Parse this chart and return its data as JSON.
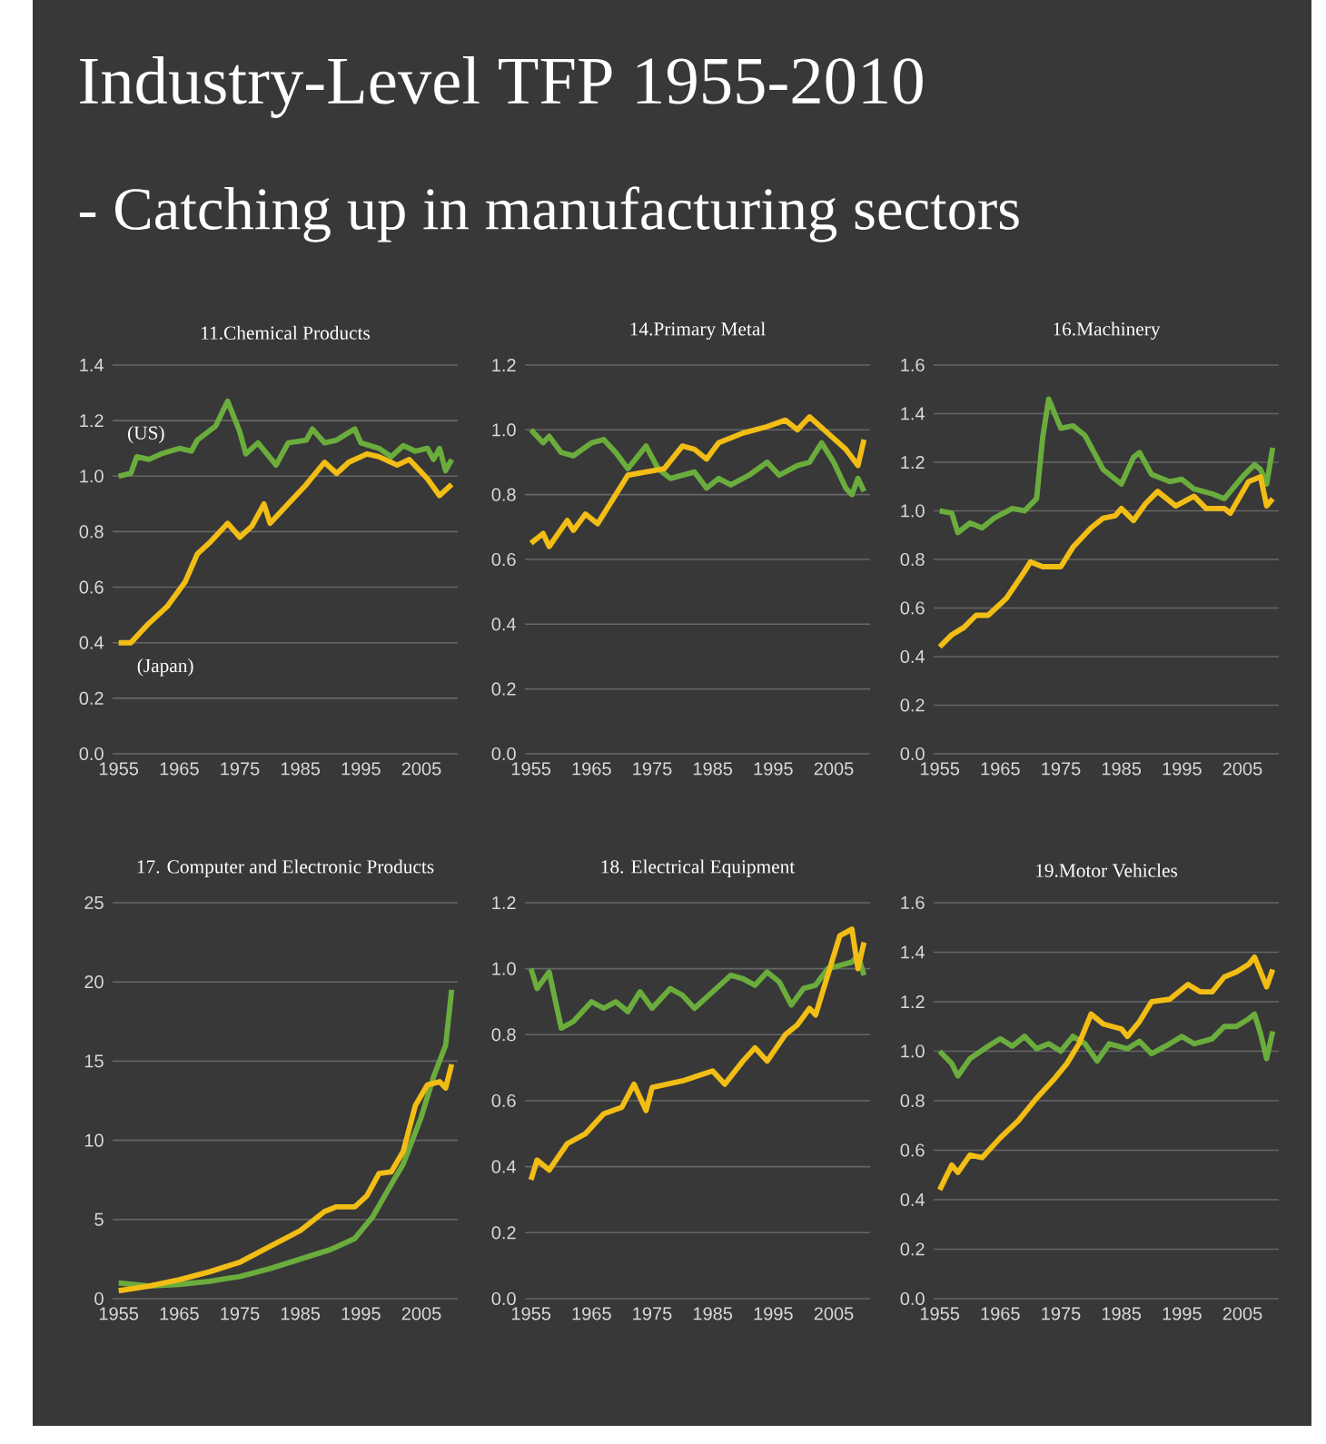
{
  "chart_data": [
    {
      "type": "other",
      "title": "Industry-Level TFP 1955-2010",
      "subtitle": "- Catching up in manufacturing sectors"
    },
    {
      "type": "line",
      "title": "11.Chemical Products",
      "xlim": [
        1954,
        2011
      ],
      "xticks": [
        1955,
        1965,
        1975,
        1985,
        1995,
        2005
      ],
      "ylim": [
        0,
        1.4
      ],
      "yticks": [
        {
          "value": 0,
          "label": "0.0"
        },
        {
          "value": 0.2,
          "label": "0.2"
        },
        {
          "value": 0.4,
          "label": "0.4"
        },
        {
          "value": 0.6,
          "label": "0.6"
        },
        {
          "value": 0.8,
          "label": "0.8"
        },
        {
          "value": 1,
          "label": "1.0"
        },
        {
          "value": 1.2,
          "label": "1.2"
        },
        {
          "value": 1.4,
          "label": "1.4"
        }
      ],
      "grid": "y",
      "series": [
        {
          "name": "(US)",
          "color": "#6aad3d",
          "x": [
            1955,
            1957,
            1958,
            1960,
            1962,
            1965,
            1967,
            1968,
            1971,
            1973,
            1975,
            1976,
            1978,
            1981,
            1983,
            1986,
            1987,
            1989,
            1991,
            1994,
            1995,
            1998,
            2000,
            2002,
            2004,
            2006,
            2007,
            2008,
            2009,
            2010
          ],
          "values": [
            1.0,
            1.01,
            1.07,
            1.06,
            1.08,
            1.1,
            1.09,
            1.13,
            1.18,
            1.27,
            1.16,
            1.08,
            1.12,
            1.04,
            1.12,
            1.13,
            1.17,
            1.12,
            1.13,
            1.17,
            1.12,
            1.1,
            1.07,
            1.11,
            1.09,
            1.1,
            1.06,
            1.1,
            1.02,
            1.06
          ]
        },
        {
          "name": "(Japan)",
          "color": "#f2bd14",
          "x": [
            1955,
            1957,
            1960,
            1963,
            1966,
            1968,
            1970,
            1973,
            1975,
            1977,
            1979,
            1980,
            1983,
            1986,
            1989,
            1991,
            1993,
            1996,
            1998,
            2001,
            2003,
            2006,
            2008,
            2010
          ],
          "values": [
            0.4,
            0.4,
            0.47,
            0.53,
            0.62,
            0.72,
            0.76,
            0.83,
            0.78,
            0.82,
            0.9,
            0.83,
            0.9,
            0.97,
            1.05,
            1.01,
            1.05,
            1.08,
            1.07,
            1.04,
            1.06,
            0.99,
            0.93,
            0.97
          ]
        }
      ]
    },
    {
      "type": "line",
      "title": "14.Primary Metal",
      "xlim": [
        1954,
        2011
      ],
      "xticks": [
        1955,
        1965,
        1975,
        1985,
        1995,
        2005
      ],
      "ylim": [
        0,
        1.2
      ],
      "yticks": [
        {
          "value": 0,
          "label": "0.0"
        },
        {
          "value": 0.2,
          "label": "0.2"
        },
        {
          "value": 0.4,
          "label": "0.4"
        },
        {
          "value": 0.6,
          "label": "0.6"
        },
        {
          "value": 0.8,
          "label": "0.8"
        },
        {
          "value": 1,
          "label": "1.0"
        },
        {
          "value": 1.2,
          "label": "1.2"
        }
      ],
      "grid": "y",
      "series": [
        {
          "color": "#6aad3d",
          "x": [
            1955,
            1957,
            1958,
            1960,
            1962,
            1965,
            1967,
            1969,
            1971,
            1974,
            1976,
            1978,
            1980,
            1982,
            1984,
            1986,
            1988,
            1991,
            1994,
            1996,
            1999,
            2001,
            2003,
            2005,
            2007,
            2008,
            2009,
            2010
          ],
          "values": [
            1.0,
            0.96,
            0.98,
            0.93,
            0.92,
            0.96,
            0.97,
            0.93,
            0.88,
            0.95,
            0.88,
            0.85,
            0.86,
            0.87,
            0.82,
            0.85,
            0.83,
            0.86,
            0.9,
            0.86,
            0.89,
            0.9,
            0.96,
            0.9,
            0.82,
            0.8,
            0.85,
            0.81
          ]
        },
        {
          "color": "#f2bd14",
          "x": [
            1955,
            1957,
            1958,
            1961,
            1962,
            1964,
            1966,
            1969,
            1971,
            1974,
            1977,
            1980,
            1982,
            1984,
            1986,
            1990,
            1994,
            1997,
            1999,
            2001,
            2004,
            2007,
            2009,
            2010
          ],
          "values": [
            0.65,
            0.68,
            0.64,
            0.72,
            0.69,
            0.74,
            0.71,
            0.8,
            0.86,
            0.87,
            0.88,
            0.95,
            0.94,
            0.91,
            0.96,
            0.99,
            1.01,
            1.03,
            1.0,
            1.04,
            0.99,
            0.94,
            0.89,
            0.97
          ]
        }
      ]
    },
    {
      "type": "line",
      "title": "16.Machinery",
      "xlim": [
        1954,
        2011
      ],
      "xticks": [
        1955,
        1965,
        1975,
        1985,
        1995,
        2005
      ],
      "ylim": [
        0,
        1.6
      ],
      "yticks": [
        {
          "value": 0,
          "label": "0.0"
        },
        {
          "value": 0.2,
          "label": "0.2"
        },
        {
          "value": 0.4,
          "label": "0.4"
        },
        {
          "value": 0.6,
          "label": "0.6"
        },
        {
          "value": 0.8,
          "label": "0.8"
        },
        {
          "value": 1,
          "label": "1.0"
        },
        {
          "value": 1.2,
          "label": "1.2"
        },
        {
          "value": 1.4,
          "label": "1.4"
        },
        {
          "value": 1.6,
          "label": "1.6"
        }
      ],
      "grid": "y",
      "series": [
        {
          "color": "#6aad3d",
          "x": [
            1955,
            1957,
            1958,
            1960,
            1962,
            1964,
            1967,
            1969,
            1971,
            1972,
            1973,
            1975,
            1977,
            1979,
            1982,
            1985,
            1987,
            1988,
            1990,
            1993,
            1995,
            1997,
            2000,
            2002,
            2005,
            2007,
            2008,
            2009,
            2010
          ],
          "values": [
            1.0,
            0.99,
            0.91,
            0.95,
            0.93,
            0.97,
            1.01,
            1.0,
            1.05,
            1.3,
            1.46,
            1.34,
            1.35,
            1.31,
            1.17,
            1.11,
            1.22,
            1.24,
            1.15,
            1.12,
            1.13,
            1.09,
            1.07,
            1.05,
            1.14,
            1.19,
            1.17,
            1.11,
            1.26
          ]
        },
        {
          "color": "#f2bd14",
          "x": [
            1955,
            1957,
            1959,
            1961,
            1963,
            1966,
            1969,
            1970,
            1972,
            1975,
            1977,
            1980,
            1982,
            1984,
            1985,
            1987,
            1989,
            1991,
            1994,
            1997,
            1999,
            2002,
            2003,
            2006,
            2008,
            2009,
            2010
          ],
          "values": [
            0.44,
            0.49,
            0.52,
            0.57,
            0.57,
            0.64,
            0.75,
            0.79,
            0.77,
            0.77,
            0.85,
            0.93,
            0.97,
            0.98,
            1.01,
            0.96,
            1.03,
            1.08,
            1.02,
            1.06,
            1.01,
            1.01,
            0.99,
            1.12,
            1.14,
            1.02,
            1.05
          ]
        }
      ]
    },
    {
      "type": "line",
      "title": "17. Computer and Electronic Products",
      "xlim": [
        1954,
        2011
      ],
      "xticks": [
        1955,
        1965,
        1975,
        1985,
        1995,
        2005
      ],
      "ylim": [
        0,
        25
      ],
      "yticks": [
        0,
        5,
        10,
        15,
        20,
        25
      ],
      "grid": "y",
      "series": [
        {
          "color": "#6aad3d",
          "x": [
            1955,
            1960,
            1965,
            1970,
            1975,
            1980,
            1985,
            1990,
            1994,
            1997,
            2000,
            2002,
            2005,
            2007,
            2009,
            2010
          ],
          "values": [
            1.0,
            0.8,
            0.9,
            1.1,
            1.4,
            1.9,
            2.5,
            3.1,
            3.8,
            5.2,
            7.2,
            8.5,
            11.5,
            14,
            16,
            19.5
          ]
        },
        {
          "color": "#f2bd14",
          "x": [
            1955,
            1960,
            1965,
            1970,
            1975,
            1980,
            1985,
            1989,
            1991,
            1994,
            1996,
            1998,
            2000,
            2002,
            2004,
            2006,
            2008,
            2009,
            2010
          ],
          "values": [
            0.5,
            0.8,
            1.2,
            1.7,
            2.3,
            3.3,
            4.3,
            5.5,
            5.8,
            5.8,
            6.5,
            7.9,
            8.0,
            9.3,
            12.2,
            13.5,
            13.7,
            13.3,
            14.8
          ]
        }
      ]
    },
    {
      "type": "line",
      "title": "18. Electrical Equipment",
      "xlim": [
        1954,
        2011
      ],
      "xticks": [
        1955,
        1965,
        1975,
        1985,
        1995,
        2005
      ],
      "ylim": [
        0,
        1.2
      ],
      "yticks": [
        {
          "value": 0,
          "label": "0.0"
        },
        {
          "value": 0.2,
          "label": "0.2"
        },
        {
          "value": 0.4,
          "label": "0.4"
        },
        {
          "value": 0.6,
          "label": "0.6"
        },
        {
          "value": 0.8,
          "label": "0.8"
        },
        {
          "value": 1,
          "label": "1.0"
        },
        {
          "value": 1.2,
          "label": "1.2"
        }
      ],
      "grid": "y",
      "series": [
        {
          "color": "#6aad3d",
          "x": [
            1955,
            1956,
            1958,
            1960,
            1962,
            1965,
            1967,
            1969,
            1971,
            1973,
            1975,
            1978,
            1980,
            1982,
            1985,
            1988,
            1990,
            1992,
            1994,
            1996,
            1998,
            2000,
            2002,
            2004,
            2006,
            2008,
            2009,
            2010
          ],
          "values": [
            1.0,
            0.94,
            0.99,
            0.82,
            0.84,
            0.9,
            0.88,
            0.9,
            0.87,
            0.93,
            0.88,
            0.94,
            0.92,
            0.88,
            0.93,
            0.98,
            0.97,
            0.95,
            0.99,
            0.96,
            0.89,
            0.94,
            0.95,
            1.0,
            1.01,
            1.02,
            1.04,
            0.98
          ]
        },
        {
          "color": "#f2bd14",
          "x": [
            1955,
            1956,
            1958,
            1961,
            1964,
            1967,
            1970,
            1972,
            1974,
            1975,
            1980,
            1985,
            1987,
            1990,
            1992,
            1994,
            1997,
            1999,
            2001,
            2002,
            2004,
            2006,
            2008,
            2009,
            2010
          ],
          "values": [
            0.36,
            0.42,
            0.39,
            0.47,
            0.5,
            0.56,
            0.58,
            0.65,
            0.57,
            0.64,
            0.66,
            0.69,
            0.65,
            0.72,
            0.76,
            0.72,
            0.8,
            0.83,
            0.88,
            0.86,
            0.98,
            1.1,
            1.12,
            1.0,
            1.08
          ]
        }
      ]
    },
    {
      "type": "line",
      "title": "19.Motor Vehicles",
      "xlim": [
        1954,
        2011
      ],
      "xticks": [
        1955,
        1965,
        1975,
        1985,
        1995,
        2005
      ],
      "ylim": [
        0,
        1.6
      ],
      "yticks": [
        {
          "value": 0,
          "label": "0.0"
        },
        {
          "value": 0.2,
          "label": "0.2"
        },
        {
          "value": 0.4,
          "label": "0.4"
        },
        {
          "value": 0.6,
          "label": "0.6"
        },
        {
          "value": 0.8,
          "label": "0.8"
        },
        {
          "value": 1,
          "label": "1.0"
        },
        {
          "value": 1.2,
          "label": "1.2"
        },
        {
          "value": 1.4,
          "label": "1.4"
        },
        {
          "value": 1.6,
          "label": "1.6"
        }
      ],
      "grid": "y",
      "series": [
        {
          "color": "#6aad3d",
          "x": [
            1955,
            1957,
            1958,
            1960,
            1963,
            1965,
            1967,
            1969,
            1971,
            1973,
            1975,
            1977,
            1979,
            1981,
            1983,
            1986,
            1988,
            1990,
            1993,
            1995,
            1997,
            2000,
            2002,
            2004,
            2006,
            2007,
            2008,
            2009,
            2010
          ],
          "values": [
            1.0,
            0.95,
            0.9,
            0.97,
            1.02,
            1.05,
            1.02,
            1.06,
            1.01,
            1.03,
            1.0,
            1.06,
            1.03,
            0.96,
            1.03,
            1.01,
            1.04,
            0.99,
            1.03,
            1.06,
            1.03,
            1.05,
            1.1,
            1.1,
            1.13,
            1.15,
            1.07,
            0.97,
            1.08
          ]
        },
        {
          "color": "#f2bd14",
          "x": [
            1955,
            1957,
            1958,
            1960,
            1962,
            1965,
            1968,
            1971,
            1974,
            1976,
            1978,
            1980,
            1982,
            1985,
            1986,
            1988,
            1990,
            1993,
            1996,
            1998,
            2000,
            2002,
            2004,
            2006,
            2007,
            2009,
            2010
          ],
          "values": [
            0.44,
            0.54,
            0.51,
            0.58,
            0.57,
            0.65,
            0.72,
            0.81,
            0.89,
            0.95,
            1.03,
            1.15,
            1.11,
            1.09,
            1.06,
            1.12,
            1.2,
            1.21,
            1.27,
            1.24,
            1.24,
            1.3,
            1.32,
            1.35,
            1.38,
            1.26,
            1.33
          ]
        }
      ]
    }
  ]
}
